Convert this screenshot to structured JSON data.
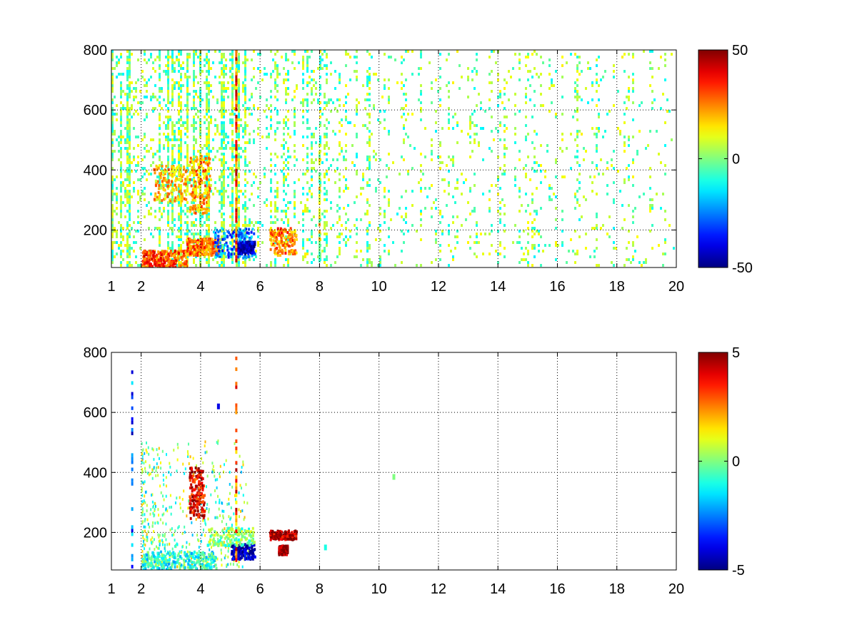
{
  "chart_data": [
    {
      "type": "heatmap",
      "title": "",
      "xlabel": "",
      "ylabel": "",
      "xlim": [
        1,
        20
      ],
      "ylim": [
        75,
        800
      ],
      "x_ticks": [
        "1",
        "2",
        "4",
        "6",
        "8",
        "10",
        "12",
        "14",
        "16",
        "18",
        "20"
      ],
      "y_ticks": [
        "200",
        "400",
        "600",
        "800"
      ],
      "grid": true,
      "grid_style": "dotted",
      "colormap": "jet",
      "colorbar": {
        "range": [
          -50,
          50
        ],
        "ticks": [
          "50",
          "0",
          "-50"
        ],
        "placement": "right"
      },
      "seed": 7,
      "density": "dense",
      "features": [
        {
          "kind": "band",
          "x": [
            2.0,
            3.5
          ],
          "y": [
            80,
            135
          ],
          "value": 30
        },
        {
          "kind": "band",
          "x": [
            3.5,
            4.6
          ],
          "y": [
            120,
            175
          ],
          "value": 25
        },
        {
          "kind": "blob",
          "x": [
            4.4,
            5.8
          ],
          "y": [
            110,
            210
          ],
          "value": -25
        },
        {
          "kind": "blob",
          "x": [
            5.2,
            5.8
          ],
          "y": [
            125,
            165
          ],
          "value": -45
        },
        {
          "kind": "blob",
          "x": [
            6.3,
            7.2
          ],
          "y": [
            120,
            210
          ],
          "value": 25
        },
        {
          "kind": "blob",
          "x": [
            3.6,
            4.3
          ],
          "y": [
            260,
            450
          ],
          "value": 22
        },
        {
          "kind": "blob",
          "x": [
            2.4,
            3.5
          ],
          "y": [
            300,
            420
          ],
          "value": 18
        },
        {
          "kind": "vline",
          "x": 5.2,
          "y": [
            80,
            800
          ],
          "value": 30
        },
        {
          "kind": "vline",
          "x": 8.0,
          "y": [
            80,
            500
          ],
          "value": 10
        }
      ]
    },
    {
      "type": "heatmap",
      "title": "",
      "xlabel": "",
      "ylabel": "",
      "xlim": [
        1,
        20
      ],
      "ylim": [
        75,
        800
      ],
      "x_ticks": [
        "1",
        "2",
        "4",
        "6",
        "8",
        "10",
        "12",
        "14",
        "16",
        "18",
        "20"
      ],
      "y_ticks": [
        "200",
        "400",
        "600",
        "800"
      ],
      "grid": true,
      "grid_style": "dotted",
      "colormap": "jet",
      "colorbar": {
        "range": [
          -5,
          5
        ],
        "ticks": [
          "5",
          "0",
          "-5"
        ],
        "placement": "right"
      },
      "seed": 19,
      "density": "sparse",
      "features": [
        {
          "kind": "band",
          "x": [
            2.0,
            4.5
          ],
          "y": [
            80,
            140
          ],
          "value": -1
        },
        {
          "kind": "blob",
          "x": [
            5.0,
            5.8
          ],
          "y": [
            115,
            165
          ],
          "value": -4.5
        },
        {
          "kind": "blob",
          "x": [
            4.2,
            5.8
          ],
          "y": [
            160,
            220
          ],
          "value": 0
        },
        {
          "kind": "blob",
          "x": [
            6.3,
            7.2
          ],
          "y": [
            180,
            210
          ],
          "value": 4.5
        },
        {
          "kind": "blob",
          "x": [
            6.6,
            6.9
          ],
          "y": [
            130,
            160
          ],
          "value": 5
        },
        {
          "kind": "blob",
          "x": [
            3.6,
            4.1
          ],
          "y": [
            250,
            420
          ],
          "value": 4
        },
        {
          "kind": "vline",
          "x": 5.2,
          "y": [
            90,
            780
          ],
          "value": 3
        },
        {
          "kind": "vline",
          "x": 1.7,
          "y": [
            80,
            750
          ],
          "value": -3
        },
        {
          "kind": "point",
          "x": 10.5,
          "y": 385,
          "value": 0
        },
        {
          "kind": "point",
          "x": 8.2,
          "y": 150,
          "value": -1
        },
        {
          "kind": "point",
          "x": 4.6,
          "y": 620,
          "value": -4
        }
      ]
    }
  ]
}
